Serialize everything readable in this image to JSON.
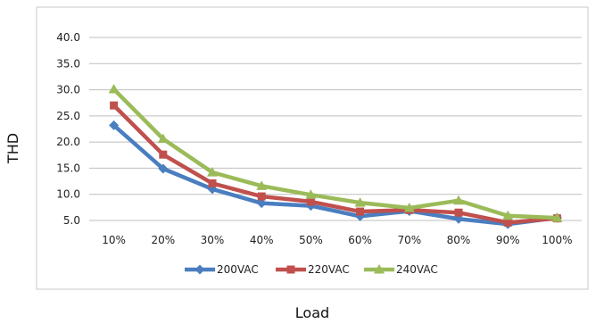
{
  "chart_data": {
    "type": "line",
    "title": "",
    "xlabel": "Load",
    "ylabel": "THD",
    "categories": [
      "10%",
      "20%",
      "30%",
      "40%",
      "50%",
      "60%",
      "70%",
      "80%",
      "90%",
      "100%"
    ],
    "ylim": [
      5.0,
      40.0
    ],
    "yticks": [
      "5.0",
      "10.0",
      "15.0",
      "20.0",
      "25.0",
      "30.0",
      "35.0",
      "40.0"
    ],
    "grid": "horizontal",
    "legend": "bottom",
    "series": [
      {
        "name": "200VAC",
        "color": "#4a7ec0",
        "marker": "diamond",
        "values": [
          23.2,
          14.9,
          11.0,
          8.3,
          7.8,
          5.8,
          6.8,
          5.3,
          4.3,
          5.5
        ]
      },
      {
        "name": "220VAC",
        "color": "#c0504d",
        "marker": "square",
        "values": [
          27.0,
          17.6,
          12.1,
          9.6,
          8.6,
          6.7,
          7.0,
          6.5,
          4.6,
          5.4
        ]
      },
      {
        "name": "240VAC",
        "color": "#9bbb59",
        "marker": "triangle",
        "values": [
          30.1,
          20.6,
          14.2,
          11.6,
          9.9,
          8.4,
          7.4,
          8.8,
          5.9,
          5.5
        ]
      }
    ]
  }
}
